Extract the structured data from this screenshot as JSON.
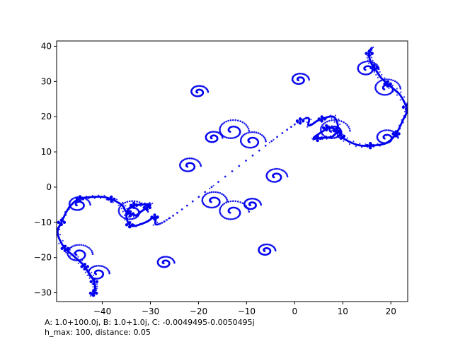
{
  "chart_data": {
    "type": "scatter",
    "title": "",
    "xlabel": "",
    "ylabel": "",
    "xlim": [
      -49.5,
      23.5
    ],
    "ylim": [
      -32.5,
      41.5
    ],
    "x_ticks": [
      -40,
      -30,
      -20,
      -10,
      0,
      10,
      20
    ],
    "x_tick_labels": [
      "−40",
      "−30",
      "−20",
      "−10",
      "0",
      "10",
      "20"
    ],
    "y_ticks": [
      -30,
      -20,
      -10,
      0,
      10,
      20,
      30,
      40
    ],
    "y_tick_labels": [
      "−30",
      "−20",
      "−10",
      "0",
      "10",
      "20",
      "30",
      "40"
    ],
    "grid": false,
    "legend": "none",
    "point_color": "#0000ee",
    "curve": {
      "symmetry_center": [
        -13,
        4.5
      ],
      "point_samples_half": [
        [
          0,
          17.8
        ],
        [
          3,
          17.5
        ],
        [
          5,
          19
        ],
        [
          8,
          20
        ],
        [
          9,
          17
        ],
        [
          8,
          14.5
        ],
        [
          6,
          14
        ],
        [
          4,
          14
        ],
        [
          6,
          16
        ],
        [
          7,
          17
        ],
        [
          9,
          16
        ],
        [
          10,
          14
        ],
        [
          13,
          12
        ],
        [
          16,
          11.8
        ],
        [
          19,
          12.5
        ],
        [
          21,
          15
        ],
        [
          22.5,
          19
        ],
        [
          23.3,
          22
        ],
        [
          22,
          26
        ],
        [
          20,
          28.5
        ],
        [
          18,
          31
        ],
        [
          17,
          33
        ],
        [
          16,
          35
        ],
        [
          15.5,
          37
        ],
        [
          15.6,
          38.5
        ],
        [
          16,
          39.5
        ]
      ],
      "satellite_spirals_half": [
        [
          8,
          16,
          3.5
        ],
        [
          19,
          14,
          2.5
        ],
        [
          19,
          28,
          3
        ],
        [
          15,
          33.5,
          2.5
        ],
        [
          1,
          30.5,
          2
        ],
        [
          -9,
          13,
          3
        ],
        [
          -13,
          16,
          3.5
        ],
        [
          -17,
          14,
          2
        ],
        [
          -4,
          3,
          2.5
        ],
        [
          -20,
          27,
          2
        ]
      ]
    }
  },
  "caption": {
    "line1": "A: 1.0+100.0j, B: 1.0+1.0j, C: -0.0049495-0.0050495j",
    "line2": "h_max: 100, distance: 0.05"
  }
}
